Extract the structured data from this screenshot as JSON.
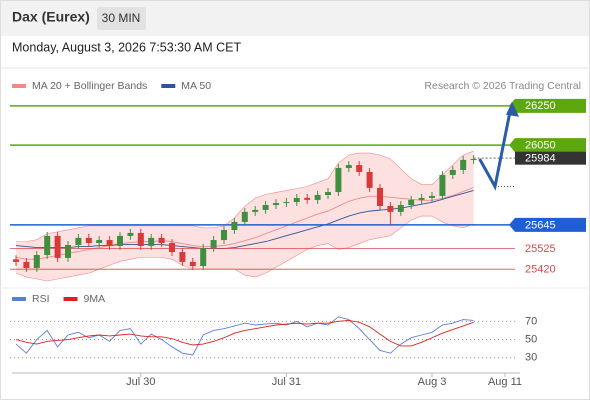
{
  "chart_data": {
    "type": "candlestick",
    "title": "Dax (Eurex)",
    "interval": "30 MIN",
    "subtitle": "Monday, August 3, 2026 7:53:30 AM CET",
    "credit": "Research © 2026 Trading Central",
    "categories": [
      null,
      null,
      null,
      null,
      null,
      null,
      null,
      null,
      null,
      null,
      null,
      null,
      "Jul 30",
      null,
      null,
      null,
      null,
      null,
      null,
      null,
      null,
      null,
      null,
      null,
      null,
      null,
      "Jul 31",
      null,
      null,
      null,
      null,
      null,
      null,
      null,
      null,
      null,
      null,
      null,
      null,
      null,
      "Aug 3",
      null,
      null,
      null,
      null
    ],
    "open": [
      25470,
      25457,
      25426,
      25492,
      25589,
      25477,
      25543,
      25579,
      25553,
      25568,
      25538,
      25589,
      25604,
      25538,
      25579,
      25553,
      25507,
      25457,
      25436,
      25528,
      25568,
      25619,
      25660,
      25711,
      25721,
      25746,
      25756,
      25761,
      25782,
      25772,
      25797,
      25812,
      25934,
      25949,
      25914,
      25833,
      25741,
      25711,
      25746,
      25772,
      25782,
      25792,
      25899,
      25924,
      25975
    ],
    "high": [
      25490,
      25477,
      25512,
      25609,
      25609,
      25563,
      25599,
      25599,
      25588,
      25588,
      25609,
      25624,
      25624,
      25599,
      25599,
      25573,
      25527,
      25477,
      25548,
      25588,
      25639,
      25680,
      25731,
      25741,
      25766,
      25776,
      25781,
      25802,
      25802,
      25817,
      25832,
      25954,
      25969,
      25969,
      25934,
      25853,
      25761,
      25766,
      25792,
      25802,
      25812,
      25919,
      25944,
      25995,
      26000
    ],
    "low": [
      25437,
      25406,
      25406,
      25472,
      25457,
      25457,
      25523,
      25533,
      25533,
      25518,
      25518,
      25569,
      25518,
      25518,
      25533,
      25487,
      25437,
      25416,
      25416,
      25508,
      25548,
      25599,
      25640,
      25691,
      25701,
      25726,
      25736,
      25741,
      25752,
      25752,
      25777,
      25792,
      25914,
      25894,
      25813,
      25721,
      25640,
      25691,
      25726,
      25752,
      25762,
      25772,
      25879,
      25904,
      25955
    ],
    "close": [
      25457,
      25426,
      25492,
      25589,
      25477,
      25543,
      25579,
      25553,
      25568,
      25538,
      25589,
      25604,
      25538,
      25579,
      25553,
      25507,
      25457,
      25436,
      25528,
      25568,
      25619,
      25660,
      25711,
      25721,
      25746,
      25756,
      25761,
      25782,
      25772,
      25797,
      25812,
      25934,
      25949,
      25914,
      25833,
      25741,
      25711,
      25746,
      25772,
      25782,
      25792,
      25899,
      25924,
      25975,
      25980
    ],
    "up_color": "#3f8f3f",
    "down_color": "#d83a3a",
    "series": [
      {
        "name": "MA 20 + Bollinger Bands",
        "color": "#f08a8a",
        "band_color": "#fde0e0",
        "values": [
          25480,
          25470,
          25470,
          25480,
          25490,
          25500,
          25510,
          25520,
          25530,
          25540,
          25550,
          25555,
          25560,
          25560,
          25565,
          25560,
          25550,
          25540,
          25535,
          25535,
          25540,
          25550,
          25565,
          25580,
          25600,
          25620,
          25640,
          25660,
          25680,
          25700,
          25715,
          25740,
          25765,
          25780,
          25790,
          25790,
          25785,
          25780,
          25775,
          25770,
          25770,
          25780,
          25795,
          25815,
          25835
        ],
        "upper": [
          25560,
          25560,
          25570,
          25600,
          25610,
          25620,
          25630,
          25640,
          25640,
          25640,
          25640,
          25640,
          25640,
          25640,
          25640,
          25640,
          25640,
          25640,
          25630,
          25630,
          25640,
          25680,
          25740,
          25780,
          25800,
          25810,
          25820,
          25830,
          25840,
          25860,
          25880,
          25960,
          26000,
          26010,
          26010,
          26000,
          25980,
          25930,
          25880,
          25850,
          25850,
          25900,
          25950,
          26000,
          26020
        ],
        "lower": [
          25400,
          25380,
          25370,
          25360,
          25370,
          25380,
          25390,
          25400,
          25420,
          25440,
          25460,
          25470,
          25480,
          25480,
          25480,
          25470,
          25440,
          25420,
          25420,
          25420,
          25420,
          25420,
          25390,
          25380,
          25400,
          25430,
          25460,
          25490,
          25520,
          25540,
          25550,
          25520,
          25530,
          25550,
          25570,
          25580,
          25590,
          25630,
          25670,
          25690,
          25690,
          25660,
          25640,
          25630,
          25650
        ]
      },
      {
        "name": "MA 50",
        "color": "#2f5597",
        "values": [
          25540,
          25535,
          25530,
          25530,
          25530,
          25530,
          25535,
          25535,
          25540,
          25540,
          25545,
          25545,
          25545,
          25545,
          25545,
          25540,
          25535,
          25530,
          25525,
          25525,
          25525,
          25530,
          25540,
          25550,
          25560,
          25575,
          25590,
          25605,
          25620,
          25635,
          25650,
          25670,
          25690,
          25705,
          25715,
          25720,
          25725,
          25730,
          25740,
          25750,
          25760,
          25775,
          25790,
          25805,
          25820
        ]
      }
    ],
    "levels": [
      {
        "value": 26250,
        "color": "#5ea80f",
        "style": "box"
      },
      {
        "value": 26050,
        "color": "#5ea80f",
        "style": "box"
      },
      {
        "value": 25984,
        "color": "#333333",
        "style": "tag"
      },
      {
        "value": 25645,
        "color": "#1f5fd6",
        "style": "box"
      },
      {
        "value": 25525,
        "color": "#e04848",
        "style": "text"
      },
      {
        "value": 25420,
        "color": "#e04848",
        "style": "text"
      }
    ],
    "forecast": {
      "label": "Aug 11",
      "color": "#2a5ca8",
      "values": [
        25980,
        25840,
        26220
      ]
    },
    "ylim": [
      25365,
      26305
    ],
    "rsi": {
      "type": "line",
      "series": [
        {
          "name": "RSI",
          "color": "#5b7fd6",
          "values": [
            45,
            35,
            50,
            60,
            42,
            55,
            58,
            52,
            55,
            48,
            60,
            62,
            45,
            56,
            50,
            42,
            35,
            33,
            55,
            60,
            62,
            65,
            68,
            66,
            67,
            68,
            66,
            70,
            64,
            68,
            66,
            75,
            72,
            62,
            50,
            38,
            35,
            45,
            52,
            55,
            58,
            66,
            68,
            72,
            71
          ]
        },
        {
          "name": "9MA",
          "color": "#e02020",
          "values": [
            50,
            47,
            45,
            48,
            49,
            50,
            52,
            54,
            55,
            54,
            55,
            56,
            54,
            53,
            53,
            51,
            47,
            44,
            45,
            48,
            52,
            57,
            60,
            62,
            64,
            66,
            67,
            68,
            67,
            68,
            68,
            70,
            71,
            69,
            64,
            56,
            48,
            43,
            43,
            47,
            52,
            57,
            61,
            65,
            69
          ]
        }
      ],
      "ylim": [
        22,
        77
      ],
      "yticks": [
        70,
        50,
        30
      ]
    }
  }
}
